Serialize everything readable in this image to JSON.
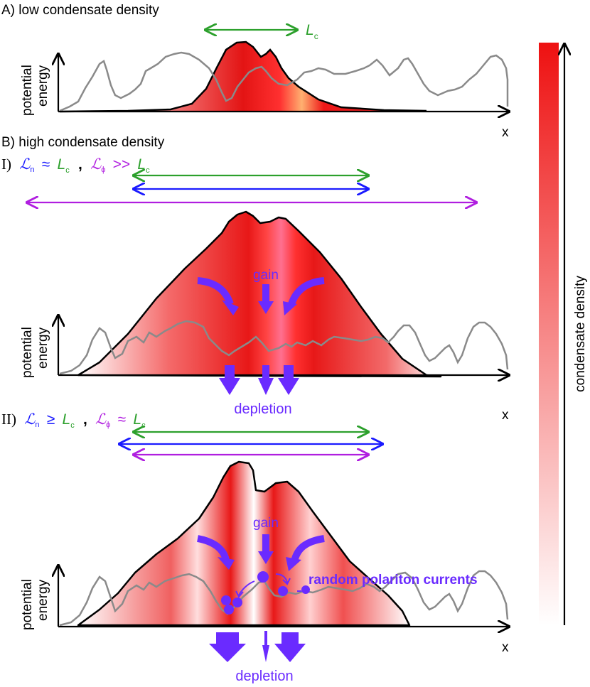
{
  "panelA": {
    "title": "A) low condensate density",
    "lc": "L",
    "lc_sub": "c",
    "ylabel1": "potential",
    "ylabel2": "energy",
    "xlabel": "x"
  },
  "panelB": {
    "title": "B) high condensate density",
    "caseI": {
      "roman": "I)",
      "ln": "ℒ",
      "ln_sub": "n",
      "rel1": "≈",
      "lc": "L",
      "lc_sub": "c",
      "comma": ",",
      "lphi": "ℒ",
      "lphi_sub": "ϕ",
      "rel2": ">>",
      "lc2": "L",
      "lc2_sub": "c",
      "gain": "gain",
      "depletion": "depletion",
      "ylabel1": "potential",
      "ylabel2": "energy",
      "xlabel": "x"
    },
    "caseII": {
      "roman": "II)",
      "ln": "ℒ",
      "ln_sub": "n",
      "rel1": "≥",
      "lc": "L",
      "lc_sub": "c",
      "comma": ",",
      "lphi": "ℒ",
      "lphi_sub": "ϕ",
      "rel2": "≈",
      "lc2": "L",
      "lc2_sub": "c",
      "gain": "gain",
      "depletion": "depletion",
      "currents": "random polariton currents",
      "ylabel1": "potential",
      "ylabel2": "energy",
      "xlabel": "x"
    }
  },
  "colorbar": {
    "label": "condensate density"
  },
  "colors": {
    "green": "#2ca02c",
    "blue": "#1a1aff",
    "magenta": "#b01ee0",
    "purple": "#6a2bff",
    "red": "#ee1111",
    "grey": "#8a8a8a"
  }
}
